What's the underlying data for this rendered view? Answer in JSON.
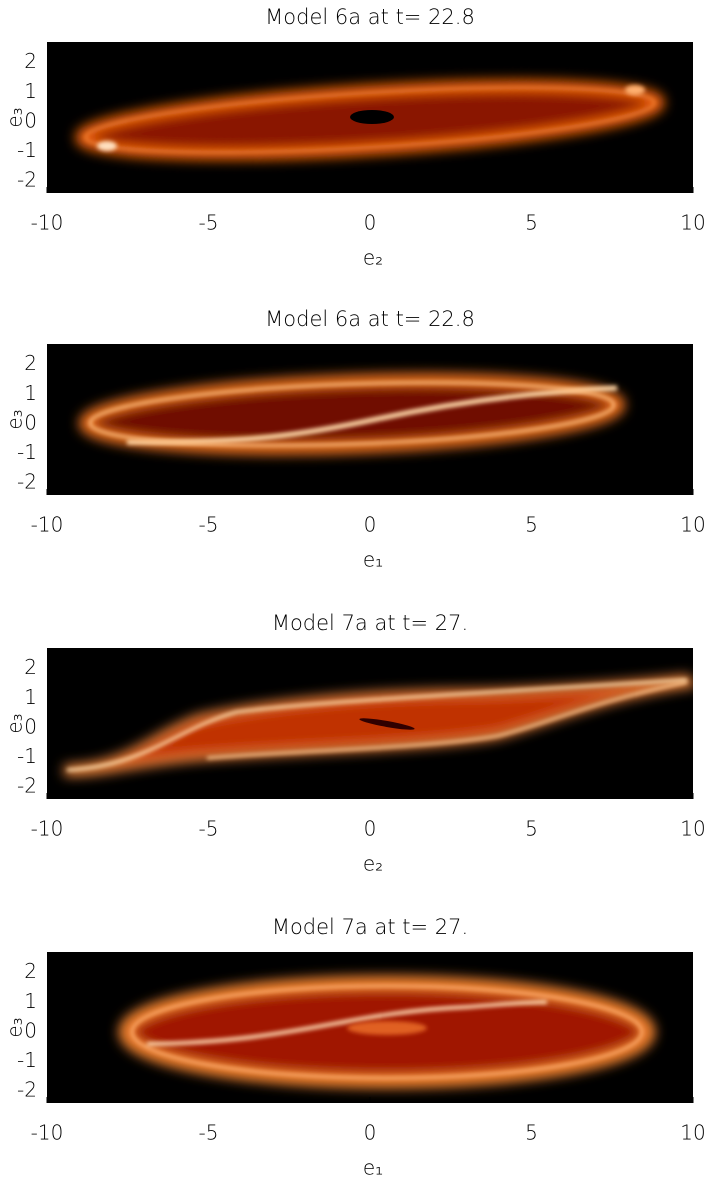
{
  "chart_data": [
    {
      "type": "image",
      "title": "Model 6a at t= 22.8",
      "xlabel": "e₂",
      "ylabel": "e₃",
      "xlim": [
        -10,
        10
      ],
      "ylim": [
        -2.4,
        2.7
      ],
      "xticks": [
        -10,
        -5,
        0,
        5,
        10
      ],
      "yticks": [
        -2,
        -1,
        0,
        1,
        2
      ]
    },
    {
      "type": "image",
      "title": "Model 6a at t= 22.8",
      "xlabel": "e₁",
      "ylabel": "e₃",
      "xlim": [
        -10,
        10
      ],
      "ylim": [
        -2.4,
        2.7
      ],
      "xticks": [
        -10,
        -5,
        0,
        5,
        10
      ],
      "yticks": [
        -2,
        -1,
        0,
        1,
        2
      ]
    },
    {
      "type": "image",
      "title": "Model 7a at t= 27.",
      "xlabel": "e₂",
      "ylabel": "e₃",
      "xlim": [
        -10,
        10
      ],
      "ylim": [
        -2.4,
        2.7
      ],
      "xticks": [
        -10,
        -5,
        0,
        5,
        10
      ],
      "yticks": [
        -2,
        -1,
        0,
        1,
        2
      ]
    },
    {
      "type": "image",
      "title": "Model 7a at t= 27.",
      "xlabel": "e₁",
      "ylabel": "e₃",
      "xlim": [
        -10,
        10
      ],
      "ylim": [
        -2.4,
        2.7
      ],
      "xticks": [
        -10,
        -5,
        0,
        5,
        10
      ],
      "yticks": [
        -2,
        -1,
        0,
        1,
        2
      ]
    }
  ]
}
